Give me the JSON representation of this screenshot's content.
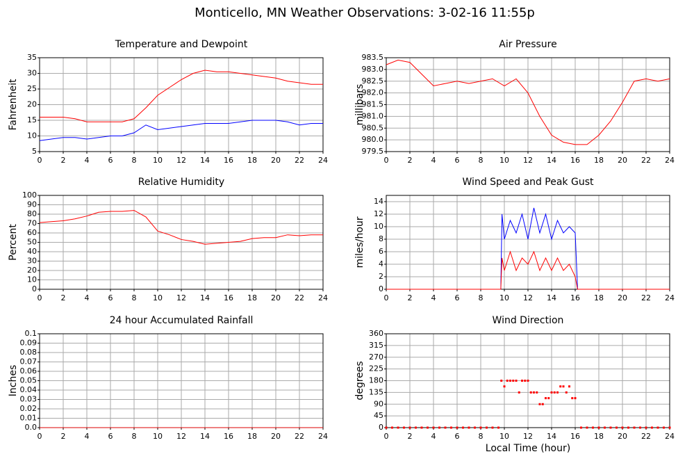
{
  "title": "Monticello, MN Weather Observations: 3-02-16 11:55p",
  "chart_data": [
    {
      "type": "line",
      "title": "Temperature and Dewpoint",
      "ylabel": "Fahrenheit",
      "x": [
        0,
        1,
        2,
        3,
        4,
        5,
        6,
        7,
        8,
        9,
        10,
        11,
        12,
        13,
        14,
        15,
        16,
        17,
        18,
        19,
        20,
        21,
        22,
        23,
        24
      ],
      "series": [
        {
          "color": "#ff0000",
          "values": [
            16,
            16,
            16,
            15.5,
            14.5,
            14.5,
            14.5,
            14.5,
            15.5,
            19,
            23,
            25.5,
            28,
            30,
            31,
            30.5,
            30.5,
            30,
            29.5,
            29,
            28.5,
            27.5,
            27,
            26.5,
            26.5
          ]
        },
        {
          "color": "#0000ff",
          "values": [
            8.5,
            9,
            9.5,
            9.5,
            9,
            9.5,
            10,
            10,
            11,
            13.5,
            12,
            12.5,
            13,
            13.5,
            14,
            14,
            14,
            14.5,
            15,
            15,
            15,
            14.5,
            13.5,
            14,
            14
          ]
        }
      ],
      "xlim": [
        0,
        24
      ],
      "xticks": [
        0,
        2,
        4,
        6,
        8,
        10,
        12,
        14,
        16,
        18,
        20,
        22,
        24
      ],
      "ylim": [
        5,
        35
      ],
      "yticks": [
        5,
        10,
        15,
        20,
        25,
        30,
        35
      ],
      "grid": true
    },
    {
      "type": "line",
      "title": "Air Pressure",
      "ylabel": "millibars",
      "x": [
        0,
        1,
        2,
        3,
        4,
        5,
        6,
        7,
        8,
        9,
        10,
        11,
        12,
        13,
        14,
        15,
        16,
        17,
        18,
        19,
        20,
        21,
        22,
        23,
        24
      ],
      "series": [
        {
          "color": "#ff0000",
          "values": [
            983.2,
            983.4,
            983.3,
            982.8,
            982.3,
            982.4,
            982.5,
            982.4,
            982.5,
            982.6,
            982.3,
            982.6,
            982.0,
            981.0,
            980.2,
            979.9,
            979.8,
            979.8,
            980.2,
            980.8,
            981.6,
            982.5,
            982.6,
            982.5,
            982.6
          ]
        }
      ],
      "xlim": [
        0,
        24
      ],
      "xticks": [
        0,
        2,
        4,
        6,
        8,
        10,
        12,
        14,
        16,
        18,
        20,
        22,
        24
      ],
      "ylim": [
        979.5,
        983.5
      ],
      "yticks": [
        979.5,
        {
          "value": 980,
          "label": "980.0"
        },
        980.5,
        {
          "value": 981,
          "label": "981.0"
        },
        981.5,
        {
          "value": 982,
          "label": "982.0"
        },
        982.5,
        {
          "value": 983,
          "label": "983.0"
        },
        983.5
      ],
      "grid": true
    },
    {
      "type": "line",
      "title": "Relative Humidity",
      "ylabel": "Percent",
      "x": [
        0,
        1,
        2,
        3,
        4,
        5,
        6,
        7,
        8,
        9,
        10,
        11,
        12,
        13,
        14,
        15,
        16,
        17,
        18,
        19,
        20,
        21,
        22,
        23,
        24
      ],
      "series": [
        {
          "color": "#ff0000",
          "values": [
            71,
            72,
            73,
            75,
            78,
            82,
            83,
            83,
            84,
            77,
            62,
            58,
            53,
            51,
            48,
            49,
            50,
            51,
            54,
            55,
            55,
            58,
            57,
            58,
            58
          ]
        }
      ],
      "xlim": [
        0,
        24
      ],
      "xticks": [
        0,
        2,
        4,
        6,
        8,
        10,
        12,
        14,
        16,
        18,
        20,
        22,
        24
      ],
      "ylim": [
        0,
        100
      ],
      "yticks": [
        0,
        10,
        20,
        30,
        40,
        50,
        60,
        70,
        80,
        90,
        100
      ],
      "grid": true
    },
    {
      "type": "line",
      "title": "Wind Speed and Peak Gust",
      "ylabel": "miles/hour",
      "x": [
        0,
        9.7,
        9.8,
        10,
        10.5,
        11,
        11.5,
        12,
        12.5,
        13,
        13.5,
        14,
        14.5,
        15,
        15.5,
        16,
        16.2,
        24
      ],
      "series": [
        {
          "color": "#0000ff",
          "values": [
            0,
            0,
            12,
            8,
            11,
            9,
            12,
            8,
            13,
            9,
            12,
            8,
            11,
            9,
            10,
            9,
            0,
            0
          ]
        },
        {
          "color": "#ff0000",
          "values": [
            0,
            0,
            5,
            3,
            6,
            3,
            5,
            4,
            6,
            3,
            5,
            3,
            5,
            3,
            4,
            2,
            0,
            0
          ]
        }
      ],
      "xlim": [
        0,
        24
      ],
      "xticks": [
        0,
        2,
        4,
        6,
        8,
        10,
        12,
        14,
        16,
        18,
        20,
        22,
        24
      ],
      "ylim": [
        0,
        15
      ],
      "yticks": [
        0,
        2,
        4,
        6,
        8,
        10,
        12,
        14
      ],
      "grid": true
    },
    {
      "type": "line",
      "title": "24 hour Accumulated Rainfall",
      "ylabel": "Inches",
      "x": [
        0,
        24
      ],
      "series": [
        {
          "color": "#dd0000",
          "values": [
            0,
            0
          ]
        }
      ],
      "xlim": [
        0,
        24
      ],
      "xticks": [
        0,
        2,
        4,
        6,
        8,
        10,
        12,
        14,
        16,
        18,
        20,
        22,
        24
      ],
      "ylim": [
        0,
        0.1
      ],
      "yticks": [
        {
          "value": 0,
          "label": "0.0"
        },
        0.01,
        0.02,
        0.03,
        0.04,
        0.05,
        0.06,
        0.07,
        0.08,
        0.09,
        0.1
      ],
      "grid": true
    },
    {
      "type": "scatter",
      "title": "Wind Direction",
      "ylabel": "degrees",
      "xlabel": "Local Time (hour)",
      "x": [
        0,
        0.5,
        1,
        1.5,
        2,
        2.5,
        3,
        3.5,
        4,
        4.5,
        5,
        5.5,
        6,
        6.5,
        7,
        7.5,
        8,
        8.5,
        9,
        9.5,
        9.75,
        10,
        10.25,
        10.5,
        10.75,
        11,
        11.25,
        11.5,
        11.75,
        12,
        12.25,
        12.5,
        12.75,
        13,
        13.25,
        13.5,
        13.75,
        14,
        14.25,
        14.5,
        14.75,
        15,
        15.25,
        15.5,
        15.75,
        16,
        16.5,
        17,
        17.5,
        18,
        18.5,
        19,
        19.5,
        20,
        20.5,
        21,
        21.5,
        22,
        22.5,
        23,
        23.5,
        24
      ],
      "series": [
        {
          "color": "#ff0000",
          "values": [
            0,
            0,
            0,
            0,
            0,
            0,
            0,
            0,
            0,
            0,
            0,
            0,
            0,
            0,
            0,
            0,
            0,
            0,
            0,
            0,
            180,
            158,
            180,
            180,
            180,
            180,
            135,
            180,
            180,
            180,
            135,
            135,
            135,
            90,
            90,
            113,
            113,
            135,
            135,
            135,
            158,
            158,
            135,
            158,
            113,
            113,
            0,
            0,
            0,
            0,
            0,
            0,
            0,
            0,
            0,
            0,
            0,
            0,
            0,
            0,
            0,
            0
          ]
        }
      ],
      "xlim": [
        0,
        24
      ],
      "xticks": [
        0,
        2,
        4,
        6,
        8,
        10,
        12,
        14,
        16,
        18,
        20,
        22,
        24
      ],
      "ylim": [
        0,
        360
      ],
      "yticks": [
        0,
        45,
        90,
        135,
        180,
        225,
        270,
        315,
        360
      ],
      "grid": true
    }
  ]
}
